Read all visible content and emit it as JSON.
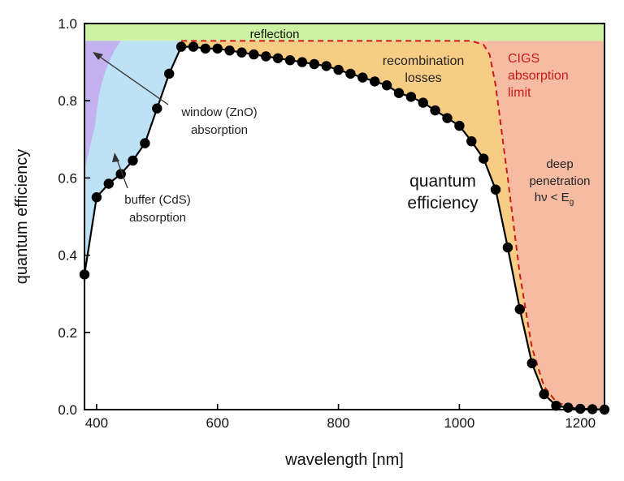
{
  "chart_data": {
    "type": "line",
    "title": "",
    "xlabel": "wavelength [nm]",
    "ylabel": "quantum efficiency",
    "xlim": [
      380,
      1240
    ],
    "ylim": [
      0,
      1.0
    ],
    "xticks": [
      400,
      600,
      800,
      1000,
      1200
    ],
    "yticks": [
      0.0,
      0.2,
      0.4,
      0.6,
      0.8,
      1.0
    ],
    "series": [
      {
        "name": "quantum efficiency",
        "style": "black line with filled circle markers",
        "x": [
          380,
          400,
          420,
          440,
          460,
          480,
          500,
          520,
          540,
          560,
          580,
          600,
          620,
          640,
          660,
          680,
          700,
          720,
          740,
          760,
          780,
          800,
          820,
          840,
          860,
          880,
          900,
          920,
          940,
          960,
          980,
          1000,
          1020,
          1040,
          1060,
          1080,
          1100,
          1120,
          1140,
          1160,
          1180,
          1200,
          1220,
          1240
        ],
        "y": [
          0.35,
          0.55,
          0.585,
          0.61,
          0.645,
          0.69,
          0.78,
          0.87,
          0.94,
          0.94,
          0.935,
          0.935,
          0.93,
          0.925,
          0.92,
          0.915,
          0.91,
          0.905,
          0.9,
          0.895,
          0.89,
          0.88,
          0.87,
          0.86,
          0.85,
          0.84,
          0.82,
          0.81,
          0.795,
          0.775,
          0.755,
          0.735,
          0.695,
          0.65,
          0.57,
          0.42,
          0.26,
          0.12,
          0.04,
          0.01,
          0.005,
          0.002,
          0.001,
          0.0
        ]
      },
      {
        "name": "CIGS absorption limit",
        "style": "red dashed line",
        "x": [
          540,
          1020,
          1040,
          1050,
          1060,
          1080,
          1100,
          1120,
          1140,
          1160,
          1180,
          1200,
          1240
        ],
        "y": [
          0.955,
          0.955,
          0.945,
          0.92,
          0.84,
          0.6,
          0.35,
          0.16,
          0.06,
          0.02,
          0.008,
          0.003,
          0.0
        ]
      }
    ],
    "regions": [
      {
        "name": "reflection",
        "label": "reflection",
        "color": "#ccf2a4"
      },
      {
        "name": "window (ZnO) absorption",
        "label": "window (ZnO)\nabsorption",
        "color": "#c2b2f0"
      },
      {
        "name": "buffer (CdS) absorption",
        "label": "buffer (CdS)\nabsorption",
        "color": "#bde1f5"
      },
      {
        "name": "recombination losses",
        "label": "recombination\nlosses",
        "color": "#f7cd86"
      },
      {
        "name": "deep penetration",
        "label": "deep\npenetration\nhν < Eg",
        "color": "#f6bca3"
      }
    ],
    "annotations": {
      "reflection": "reflection",
      "recombination": [
        "recombination",
        "losses"
      ],
      "cigs": [
        "CIGS",
        "absorption",
        "limit"
      ],
      "qe": [
        "quantum",
        "efficiency"
      ],
      "window": [
        "window (ZnO)",
        "absorption"
      ],
      "buffer": [
        "buffer (CdS)",
        "absorption"
      ],
      "deep": [
        "deep",
        "penetration",
        "hν < E",
        "g"
      ]
    },
    "colors": {
      "reflection": "#ccf2a4",
      "window": "#c2b2f0",
      "buffer": "#bde1f5",
      "recombination": "#f7cd86",
      "deep": "#f6bca3",
      "limit": "#cc1a1a",
      "qe": "#000000",
      "cigs_label": "#cc1a1a"
    }
  }
}
